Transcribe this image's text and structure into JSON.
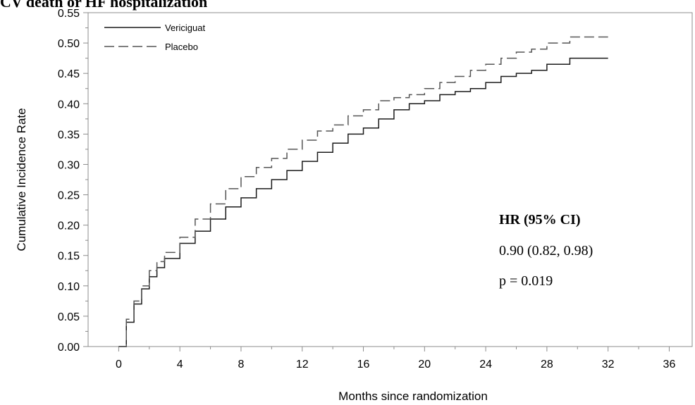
{
  "chart_data": {
    "type": "line",
    "title": "CV death or HF hospitalization",
    "xlabel": "Months since randomization",
    "ylabel": "Cumulative Incidence Rate",
    "xlim": [
      -2,
      37.5
    ],
    "ylim": [
      0,
      0.55
    ],
    "xticks": [
      0,
      4,
      8,
      12,
      16,
      20,
      24,
      28,
      32,
      36
    ],
    "yticks": [
      0.0,
      0.05,
      0.1,
      0.15,
      0.2,
      0.25,
      0.3,
      0.35,
      0.4,
      0.45,
      0.5,
      0.55
    ],
    "grid": false,
    "legend_position": "top-left",
    "series": [
      {
        "name": "Vericiguat",
        "style": "solid",
        "color": "#1a1a1a",
        "x": [
          0,
          0.5,
          1,
          1.5,
          2,
          2.5,
          3,
          4,
          5,
          6,
          7,
          8,
          9,
          10,
          11,
          12,
          13,
          14,
          15,
          16,
          17,
          18,
          19,
          20,
          21,
          22,
          23,
          24,
          25,
          26,
          27,
          28,
          29,
          29.5,
          30,
          31,
          32
        ],
        "y": [
          0,
          0.04,
          0.07,
          0.095,
          0.115,
          0.13,
          0.145,
          0.17,
          0.19,
          0.21,
          0.23,
          0.245,
          0.26,
          0.275,
          0.29,
          0.305,
          0.32,
          0.335,
          0.35,
          0.36,
          0.375,
          0.39,
          0.4,
          0.405,
          0.415,
          0.42,
          0.425,
          0.435,
          0.445,
          0.45,
          0.455,
          0.465,
          0.465,
          0.475,
          0.475,
          0.475,
          0.475
        ]
      },
      {
        "name": "Placebo",
        "style": "dashed",
        "color": "#555555",
        "x": [
          0,
          0.5,
          1,
          1.5,
          2,
          2.5,
          3,
          4,
          5,
          6,
          7,
          8,
          9,
          10,
          11,
          12,
          13,
          14,
          15,
          16,
          17,
          18,
          19,
          20,
          21,
          22,
          23,
          24,
          25,
          26,
          27,
          28,
          29,
          29.5,
          30,
          31,
          32
        ],
        "y": [
          0,
          0.045,
          0.075,
          0.1,
          0.125,
          0.14,
          0.155,
          0.18,
          0.21,
          0.235,
          0.26,
          0.28,
          0.295,
          0.31,
          0.325,
          0.34,
          0.355,
          0.365,
          0.38,
          0.39,
          0.405,
          0.41,
          0.415,
          0.425,
          0.435,
          0.445,
          0.455,
          0.465,
          0.475,
          0.485,
          0.49,
          0.5,
          0.5,
          0.51,
          0.51,
          0.51,
          0.51
        ]
      }
    ],
    "annotations": [
      {
        "text": "HR (95% CI)",
        "bold": true
      },
      {
        "text": "0.90 (0.82, 0.98)",
        "bold": false
      },
      {
        "text": "p = 0.019",
        "bold": false
      }
    ]
  }
}
